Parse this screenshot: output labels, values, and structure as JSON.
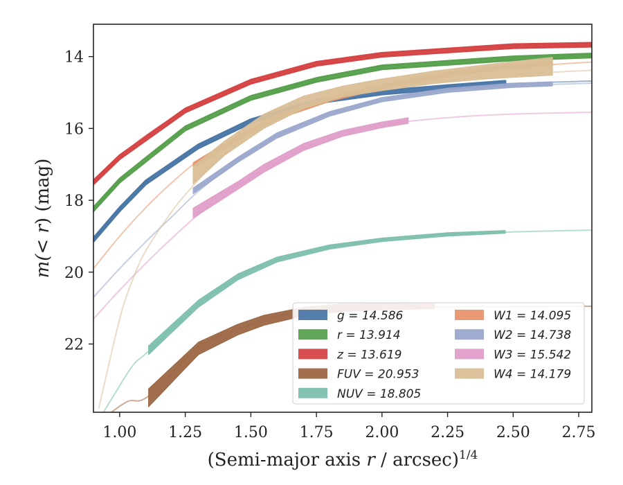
{
  "chart_data": {
    "type": "line",
    "xlabel": "(Semi-major axis r / arcsec)",
    "xlabel_italic": "r",
    "xlabel_pre": "(Semi-major axis ",
    "xlabel_post": " / arcsec)",
    "xlabel_exp": "1/4",
    "ylabel_pre": "m(",
    "ylabel_italic": "< r",
    "ylabel_post": ") (mag)",
    "xlim": [
      0.9,
      2.8
    ],
    "ylim": [
      23.9,
      13.1
    ],
    "y_inverted": true,
    "xticks": [
      "1.00",
      "1.25",
      "1.50",
      "1.75",
      "2.00",
      "2.25",
      "2.50",
      "2.75"
    ],
    "xtick_values": [
      1.0,
      1.25,
      1.5,
      1.75,
      2.0,
      2.25,
      2.5,
      2.75
    ],
    "yticks": [
      "14",
      "16",
      "18",
      "20",
      "22"
    ],
    "ytick_values": [
      14,
      16,
      18,
      20,
      22
    ],
    "grid": false,
    "legend_position": "lower-right",
    "series": [
      {
        "name": "g = 14.586",
        "color": "#4c78a8",
        "extrap": [
          [
            0.9,
            19.1
          ],
          [
            1.0,
            18.25
          ],
          [
            1.1,
            17.5
          ],
          [
            1.2,
            16.95
          ],
          [
            1.3,
            16.5
          ],
          [
            1.45,
            15.95
          ],
          [
            1.6,
            15.55
          ],
          [
            1.8,
            15.2
          ],
          [
            2.0,
            15.0
          ],
          [
            2.25,
            14.85
          ],
          [
            2.5,
            14.75
          ],
          [
            2.8,
            14.68
          ]
        ],
        "band": [
          [
            0.9,
            19.15,
            19.05
          ],
          [
            1.0,
            18.3,
            18.2
          ],
          [
            1.1,
            17.55,
            17.45
          ],
          [
            1.3,
            16.55,
            16.45
          ],
          [
            1.5,
            15.85,
            15.75
          ],
          [
            1.75,
            15.3,
            15.2
          ],
          [
            2.0,
            15.05,
            14.95
          ],
          [
            2.25,
            14.9,
            14.8
          ],
          [
            2.47,
            14.78,
            14.68
          ]
        ],
        "thickness": 3
      },
      {
        "name": "r = 13.914",
        "color": "#59a14f",
        "extrap": [
          [
            0.9,
            18.25
          ],
          [
            1.0,
            17.45
          ],
          [
            1.1,
            16.8
          ],
          [
            1.25,
            16.0
          ],
          [
            1.4,
            15.45
          ],
          [
            1.6,
            14.95
          ],
          [
            1.8,
            14.55
          ],
          [
            2.0,
            14.3
          ],
          [
            2.25,
            14.15
          ],
          [
            2.5,
            14.05
          ],
          [
            2.8,
            13.97
          ]
        ],
        "band": [
          [
            0.9,
            18.3,
            18.2
          ],
          [
            1.0,
            17.5,
            17.4
          ],
          [
            1.25,
            16.05,
            15.95
          ],
          [
            1.5,
            15.2,
            15.1
          ],
          [
            1.75,
            14.7,
            14.6
          ],
          [
            2.0,
            14.35,
            14.25
          ],
          [
            2.5,
            14.1,
            14.0
          ],
          [
            2.8,
            14.02,
            13.92
          ]
        ],
        "thickness": 3
      },
      {
        "name": "z = 13.619",
        "color": "#d64545",
        "extrap": [
          [
            0.9,
            17.5
          ],
          [
            1.0,
            16.8
          ],
          [
            1.1,
            16.2
          ],
          [
            1.25,
            15.5
          ],
          [
            1.4,
            15.0
          ],
          [
            1.6,
            14.5
          ],
          [
            1.8,
            14.15
          ],
          [
            2.0,
            13.95
          ],
          [
            2.25,
            13.8
          ],
          [
            2.5,
            13.72
          ],
          [
            2.8,
            13.68
          ]
        ],
        "band": [
          [
            0.9,
            17.55,
            17.45
          ],
          [
            1.0,
            16.85,
            16.75
          ],
          [
            1.25,
            15.55,
            15.45
          ],
          [
            1.5,
            14.75,
            14.65
          ],
          [
            1.75,
            14.25,
            14.15
          ],
          [
            2.0,
            14.0,
            13.9
          ],
          [
            2.5,
            13.76,
            13.66
          ],
          [
            2.8,
            13.72,
            13.62
          ]
        ],
        "thickness": 3
      },
      {
        "name": "FUV = 20.953",
        "color": "#9c6644",
        "extrap": [
          [
            0.95,
            24.0
          ],
          [
            1.03,
            23.6
          ],
          [
            1.11,
            23.45
          ],
          [
            1.3,
            22.1
          ],
          [
            1.45,
            21.6
          ],
          [
            1.55,
            21.35
          ],
          [
            1.7,
            21.1
          ],
          [
            2.0,
            20.99
          ],
          [
            2.3,
            20.97
          ],
          [
            2.5,
            20.96
          ],
          [
            2.8,
            20.95
          ]
        ],
        "band": [
          [
            1.11,
            23.75,
            23.25
          ],
          [
            1.3,
            22.3,
            21.95
          ],
          [
            1.45,
            21.75,
            21.45
          ],
          [
            1.55,
            21.48,
            21.2
          ],
          [
            1.7,
            21.22,
            20.98
          ],
          [
            1.85,
            21.1,
            20.88
          ],
          [
            2.0,
            21.05,
            20.87
          ],
          [
            2.2,
            21.02,
            20.88
          ]
        ],
        "thickness": 0
      },
      {
        "name": "NUV = 18.805",
        "color": "#7dbfae",
        "extrap": [
          [
            0.93,
            24.0
          ],
          [
            0.98,
            23.4
          ],
          [
            1.05,
            22.6
          ],
          [
            1.11,
            22.2
          ],
          [
            1.3,
            20.9
          ],
          [
            1.45,
            20.15
          ],
          [
            1.6,
            19.65
          ],
          [
            1.8,
            19.3
          ],
          [
            2.0,
            19.1
          ],
          [
            2.25,
            18.95
          ],
          [
            2.5,
            18.88
          ],
          [
            2.8,
            18.83
          ]
        ],
        "band": [
          [
            1.11,
            22.3,
            22.05
          ],
          [
            1.3,
            20.98,
            20.78
          ],
          [
            1.45,
            20.22,
            20.05
          ],
          [
            1.6,
            19.72,
            19.58
          ],
          [
            1.8,
            19.36,
            19.24
          ],
          [
            2.0,
            19.15,
            19.05
          ],
          [
            2.25,
            19.0,
            18.9
          ],
          [
            2.47,
            18.92,
            18.84
          ]
        ],
        "thickness": 0
      },
      {
        "name": "W1 = 14.095",
        "color": "#e8956e",
        "extrap": [
          [
            0.9,
            19.9
          ],
          [
            1.0,
            19.0
          ],
          [
            1.1,
            18.2
          ],
          [
            1.2,
            17.5
          ],
          [
            1.3,
            16.9
          ],
          [
            1.45,
            16.25
          ],
          [
            1.6,
            15.7
          ],
          [
            1.8,
            15.2
          ],
          [
            2.0,
            14.85
          ],
          [
            2.25,
            14.5
          ],
          [
            2.5,
            14.3
          ],
          [
            2.8,
            14.15
          ]
        ],
        "band": [
          [
            1.28,
            17.1,
            16.95
          ],
          [
            1.45,
            16.35,
            16.2
          ],
          [
            1.6,
            15.75,
            15.62
          ],
          [
            1.8,
            15.25,
            15.12
          ],
          [
            2.0,
            14.9,
            14.78
          ],
          [
            2.25,
            14.55,
            14.43
          ],
          [
            2.5,
            14.32,
            14.2
          ],
          [
            2.65,
            14.25,
            14.13
          ]
        ],
        "thickness": 0
      },
      {
        "name": "W2 = 14.738",
        "color": "#9aa8cc",
        "extrap": [
          [
            0.9,
            20.7
          ],
          [
            1.0,
            19.9
          ],
          [
            1.1,
            19.15
          ],
          [
            1.2,
            18.45
          ],
          [
            1.3,
            17.75
          ],
          [
            1.45,
            16.9
          ],
          [
            1.6,
            16.2
          ],
          [
            1.8,
            15.6
          ],
          [
            2.0,
            15.2
          ],
          [
            2.25,
            14.95
          ],
          [
            2.5,
            14.82
          ],
          [
            2.8,
            14.74
          ]
        ],
        "band": [
          [
            1.28,
            17.82,
            17.66
          ],
          [
            1.45,
            16.95,
            16.8
          ],
          [
            1.6,
            16.27,
            16.12
          ],
          [
            1.8,
            15.66,
            15.53
          ],
          [
            2.0,
            15.26,
            15.14
          ],
          [
            2.25,
            15.0,
            14.88
          ],
          [
            2.5,
            14.86,
            14.74
          ],
          [
            2.65,
            14.82,
            14.7
          ]
        ],
        "thickness": 0
      },
      {
        "name": "W3 = 15.542",
        "color": "#df9ec8",
        "extrap": [
          [
            0.9,
            21.3
          ],
          [
            1.0,
            20.5
          ],
          [
            1.1,
            19.75
          ],
          [
            1.2,
            19.05
          ],
          [
            1.3,
            18.4
          ],
          [
            1.45,
            17.6
          ],
          [
            1.6,
            16.95
          ],
          [
            1.8,
            16.25
          ],
          [
            2.0,
            15.9
          ],
          [
            2.25,
            15.7
          ],
          [
            2.5,
            15.6
          ],
          [
            2.8,
            15.55
          ]
        ],
        "band": [
          [
            1.28,
            18.5,
            18.22
          ],
          [
            1.45,
            17.7,
            17.48
          ],
          [
            1.55,
            17.22,
            17.0
          ],
          [
            1.7,
            16.62,
            16.42
          ],
          [
            1.85,
            16.22,
            16.05
          ],
          [
            2.0,
            15.98,
            15.82
          ],
          [
            2.1,
            15.86,
            15.7
          ]
        ],
        "thickness": 0
      },
      {
        "name": "W4 = 14.179",
        "color": "#d9bf97",
        "extrap": [
          [
            0.92,
            23.8
          ],
          [
            1.0,
            21.3
          ],
          [
            1.05,
            20.2
          ],
          [
            1.1,
            19.4
          ],
          [
            1.2,
            18.3
          ],
          [
            1.28,
            17.6
          ],
          [
            1.4,
            16.7
          ],
          [
            1.55,
            15.9
          ],
          [
            1.8,
            15.1
          ],
          [
            2.0,
            14.85
          ],
          [
            2.25,
            14.65
          ],
          [
            2.5,
            14.5
          ],
          [
            2.8,
            14.38
          ]
        ],
        "band": [
          [
            1.28,
            17.55,
            17.05
          ],
          [
            1.4,
            16.75,
            16.35
          ],
          [
            1.55,
            16.0,
            15.6
          ],
          [
            1.7,
            15.45,
            15.1
          ],
          [
            1.85,
            15.12,
            14.82
          ],
          [
            2.0,
            14.95,
            14.62
          ],
          [
            2.2,
            14.75,
            14.4
          ],
          [
            2.4,
            14.62,
            14.22
          ],
          [
            2.65,
            14.52,
            14.02
          ]
        ],
        "thickness": 0
      }
    ]
  }
}
